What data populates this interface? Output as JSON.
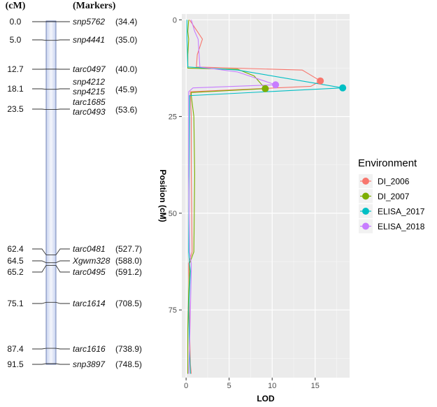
{
  "linkage_map": {
    "header_cm": "(cM)",
    "header_markers": "(Markers)",
    "markers": [
      {
        "cm": "0.0",
        "names": [
          "snp5762"
        ],
        "pos": "(34.4)",
        "map_cm": 0.0
      },
      {
        "cm": "5.0",
        "names": [
          "snp4441"
        ],
        "pos": "(35.0)",
        "map_cm": 5.0
      },
      {
        "cm": "12.7",
        "names": [
          "tarc0497"
        ],
        "pos": "(40.0)",
        "map_cm": 12.7
      },
      {
        "cm": "18.1",
        "names": [
          "snp4212",
          "snp4215"
        ],
        "pos": "(45.9)",
        "map_cm": 18.1
      },
      {
        "cm": "23.5",
        "names": [
          "tarc1685",
          "tarc0493"
        ],
        "pos": "(53.6)",
        "map_cm": 23.5
      },
      {
        "cm": "62.4",
        "names": [
          "tarc0481"
        ],
        "pos": "(527.7)",
        "map_cm": 62.4
      },
      {
        "cm": "64.5",
        "names": [
          "Xgwm328"
        ],
        "pos": "(588.0)",
        "map_cm": 64.5
      },
      {
        "cm": "65.2",
        "names": [
          "tarc0495"
        ],
        "pos": "(591.2)",
        "map_cm": 65.2
      },
      {
        "cm": "75.1",
        "names": [
          "tarc1614"
        ],
        "pos": "(708.5)",
        "map_cm": 75.1
      },
      {
        "cm": "87.4",
        "names": [
          "tarc1616"
        ],
        "pos": "(738.9)",
        "map_cm": 87.4
      },
      {
        "cm": "91.5",
        "names": [
          "snp3897"
        ],
        "pos": "(748.5)",
        "map_cm": 91.5
      }
    ]
  },
  "chart_data": {
    "type": "line",
    "xlabel": "LOD",
    "ylabel": "Position (cM)",
    "xlim": [
      -0.5,
      19
    ],
    "ylim": [
      -1.5,
      92.5
    ],
    "y_reversed": true,
    "xticks": [
      0,
      5,
      10,
      15
    ],
    "yticks": [
      0,
      25,
      50,
      75
    ],
    "grid": true,
    "legend": {
      "title": "Environment",
      "placement": "right"
    },
    "series": [
      {
        "name": "DI_2006",
        "color": "#F8766D",
        "points": [
          [
            0.4,
            0
          ],
          [
            1.0,
            2
          ],
          [
            1.9,
            5
          ],
          [
            1.3,
            9
          ],
          [
            1.2,
            12.2
          ],
          [
            13.5,
            13
          ],
          [
            15.6,
            15.8
          ],
          [
            14.5,
            17.2
          ],
          [
            0.5,
            18.6
          ],
          [
            0.5,
            19.6
          ],
          [
            0.6,
            25
          ],
          [
            0.6,
            40
          ],
          [
            0.7,
            60
          ],
          [
            0.3,
            63
          ],
          [
            0.3,
            65
          ],
          [
            0.35,
            70
          ],
          [
            0.4,
            80
          ],
          [
            0.5,
            89
          ],
          [
            0.6,
            91.5
          ]
        ],
        "peak": [
          15.6,
          15.8
        ]
      },
      {
        "name": "DI_2007",
        "color": "#7CAE00",
        "points": [
          [
            0.3,
            0
          ],
          [
            0.2,
            3
          ],
          [
            0.3,
            5
          ],
          [
            0.2,
            9
          ],
          [
            0.2,
            12.5
          ],
          [
            6,
            12.8
          ],
          [
            7.9,
            14.5
          ],
          [
            9.2,
            17.8
          ],
          [
            0.6,
            18.8
          ],
          [
            0.6,
            19.6
          ],
          [
            0.9,
            25
          ],
          [
            1.0,
            40
          ],
          [
            0.9,
            60
          ],
          [
            0.4,
            63
          ],
          [
            0.4,
            65
          ],
          [
            0.3,
            70
          ],
          [
            0.2,
            80
          ],
          [
            0.2,
            91.5
          ]
        ],
        "peak": [
          9.2,
          17.8
        ]
      },
      {
        "name": "ELISA_2017",
        "color": "#00BFC4",
        "points": [
          [
            0.1,
            0
          ],
          [
            0.1,
            5
          ],
          [
            0.2,
            12.2
          ],
          [
            6,
            13
          ],
          [
            18.2,
            17.6
          ],
          [
            0.4,
            19.6
          ],
          [
            0.4,
            25
          ],
          [
            0.35,
            40
          ],
          [
            0.3,
            60
          ],
          [
            0.4,
            63
          ],
          [
            0.5,
            65
          ],
          [
            0.3,
            75
          ],
          [
            0.4,
            85
          ],
          [
            0.5,
            91.5
          ]
        ],
        "peak": [
          18.2,
          17.6
        ]
      },
      {
        "name": "ELISA_2018",
        "color": "#C77CFF",
        "points": [
          [
            0.6,
            0
          ],
          [
            1.0,
            3
          ],
          [
            1.4,
            5
          ],
          [
            1.6,
            12.2
          ],
          [
            6,
            13.5
          ],
          [
            10.4,
            16.8
          ],
          [
            0.8,
            17.6
          ],
          [
            0.3,
            18.6
          ],
          [
            0.3,
            25
          ],
          [
            0.3,
            40
          ],
          [
            0.4,
            60
          ],
          [
            0.6,
            63
          ],
          [
            0.6,
            65
          ],
          [
            0.5,
            75
          ],
          [
            0.4,
            85
          ],
          [
            0.3,
            91.5
          ]
        ],
        "peak": [
          10.4,
          16.8
        ]
      }
    ]
  }
}
